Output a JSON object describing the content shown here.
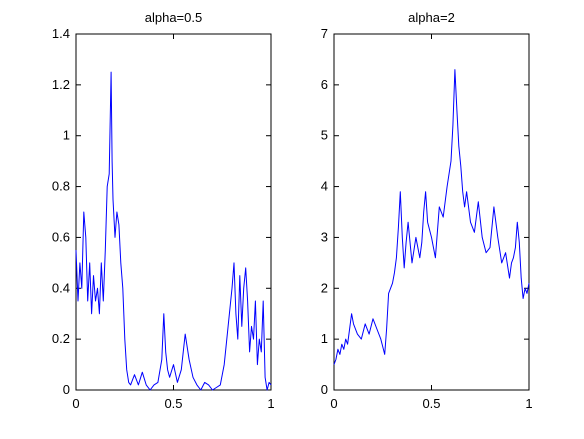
{
  "chart_data": [
    {
      "type": "line",
      "title": "alpha=0.5",
      "xlim": [
        0,
        1
      ],
      "ylim": [
        0,
        1.4
      ],
      "x_ticks": [
        0,
        0.5,
        1
      ],
      "x_tick_labels": [
        "0",
        "0.5",
        "1"
      ],
      "y_ticks": [
        0,
        0.2,
        0.4,
        0.6,
        0.8,
        1.0,
        1.2,
        1.4
      ],
      "y_tick_labels": [
        "0",
        "0.2",
        "0.4",
        "0.6",
        "0.8",
        "1",
        "1.2",
        "1.4"
      ],
      "grid": false,
      "series_color": "#0000ff",
      "series": [
        {
          "x": [
            0,
            0.01,
            0.02,
            0.03,
            0.04,
            0.05,
            0.06,
            0.07,
            0.08,
            0.09,
            0.1,
            0.11,
            0.12,
            0.13,
            0.14,
            0.15,
            0.16,
            0.17,
            0.18,
            0.185,
            0.19,
            0.2,
            0.21,
            0.22,
            0.23,
            0.24,
            0.25,
            0.26,
            0.27,
            0.28,
            0.3,
            0.32,
            0.34,
            0.36,
            0.38,
            0.4,
            0.42,
            0.44,
            0.45,
            0.46,
            0.47,
            0.48,
            0.5,
            0.52,
            0.54,
            0.56,
            0.58,
            0.6,
            0.62,
            0.64,
            0.66,
            0.68,
            0.7,
            0.72,
            0.74,
            0.76,
            0.78,
            0.8,
            0.81,
            0.82,
            0.83,
            0.84,
            0.85,
            0.86,
            0.87,
            0.88,
            0.89,
            0.9,
            0.91,
            0.92,
            0.93,
            0.94,
            0.95,
            0.96,
            0.97,
            0.98,
            0.99,
            1.0
          ],
          "y": [
            0.55,
            0.35,
            0.5,
            0.4,
            0.7,
            0.6,
            0.35,
            0.5,
            0.3,
            0.45,
            0.35,
            0.4,
            0.3,
            0.5,
            0.35,
            0.55,
            0.8,
            0.85,
            1.25,
            0.9,
            0.75,
            0.6,
            0.7,
            0.65,
            0.5,
            0.4,
            0.2,
            0.08,
            0.03,
            0.02,
            0.06,
            0.02,
            0.07,
            0.02,
            0.0,
            0.02,
            0.03,
            0.12,
            0.3,
            0.15,
            0.08,
            0.05,
            0.1,
            0.03,
            0.08,
            0.22,
            0.12,
            0.05,
            0.02,
            0.0,
            0.03,
            0.02,
            0.0,
            0.01,
            0.02,
            0.1,
            0.25,
            0.4,
            0.5,
            0.3,
            0.2,
            0.45,
            0.25,
            0.4,
            0.48,
            0.35,
            0.15,
            0.25,
            0.2,
            0.35,
            0.1,
            0.2,
            0.15,
            0.35,
            0.05,
            0.0,
            0.03,
            0.02
          ]
        }
      ]
    },
    {
      "type": "line",
      "title": "alpha=2",
      "xlim": [
        0,
        1
      ],
      "ylim": [
        0,
        7
      ],
      "x_ticks": [
        0,
        0.5,
        1
      ],
      "x_tick_labels": [
        "0",
        "0.5",
        "1"
      ],
      "y_ticks": [
        0,
        1,
        2,
        3,
        4,
        5,
        6,
        7
      ],
      "y_tick_labels": [
        "0",
        "1",
        "2",
        "3",
        "4",
        "5",
        "6",
        "7"
      ],
      "grid": false,
      "series_color": "#0000ff",
      "series": [
        {
          "x": [
            0,
            0.01,
            0.02,
            0.03,
            0.04,
            0.05,
            0.06,
            0.07,
            0.08,
            0.09,
            0.1,
            0.12,
            0.14,
            0.16,
            0.18,
            0.2,
            0.22,
            0.24,
            0.26,
            0.27,
            0.28,
            0.3,
            0.31,
            0.32,
            0.33,
            0.34,
            0.35,
            0.36,
            0.37,
            0.38,
            0.4,
            0.42,
            0.44,
            0.45,
            0.46,
            0.47,
            0.48,
            0.5,
            0.52,
            0.54,
            0.56,
            0.58,
            0.6,
            0.61,
            0.62,
            0.63,
            0.64,
            0.65,
            0.66,
            0.67,
            0.68,
            0.7,
            0.72,
            0.74,
            0.76,
            0.78,
            0.8,
            0.82,
            0.84,
            0.86,
            0.88,
            0.9,
            0.91,
            0.92,
            0.93,
            0.94,
            0.95,
            0.96,
            0.97,
            0.98,
            0.99,
            1.0
          ],
          "y": [
            0.5,
            0.6,
            0.8,
            0.7,
            0.9,
            0.8,
            1.0,
            0.9,
            1.2,
            1.5,
            1.3,
            1.1,
            1.0,
            1.3,
            1.1,
            1.4,
            1.2,
            1.0,
            0.7,
            1.2,
            1.9,
            2.1,
            2.3,
            2.6,
            3.2,
            3.9,
            3.0,
            2.4,
            2.9,
            3.3,
            2.5,
            3.0,
            2.6,
            2.9,
            3.5,
            3.9,
            3.3,
            3.0,
            2.6,
            3.6,
            3.4,
            4.0,
            4.5,
            5.2,
            6.3,
            5.5,
            4.8,
            4.4,
            3.9,
            3.6,
            3.9,
            3.3,
            3.1,
            3.7,
            3.0,
            2.7,
            2.8,
            3.6,
            3.0,
            2.5,
            2.7,
            2.2,
            2.5,
            2.6,
            2.8,
            3.3,
            2.9,
            2.2,
            1.8,
            2.0,
            1.9,
            2.1
          ]
        }
      ]
    }
  ]
}
